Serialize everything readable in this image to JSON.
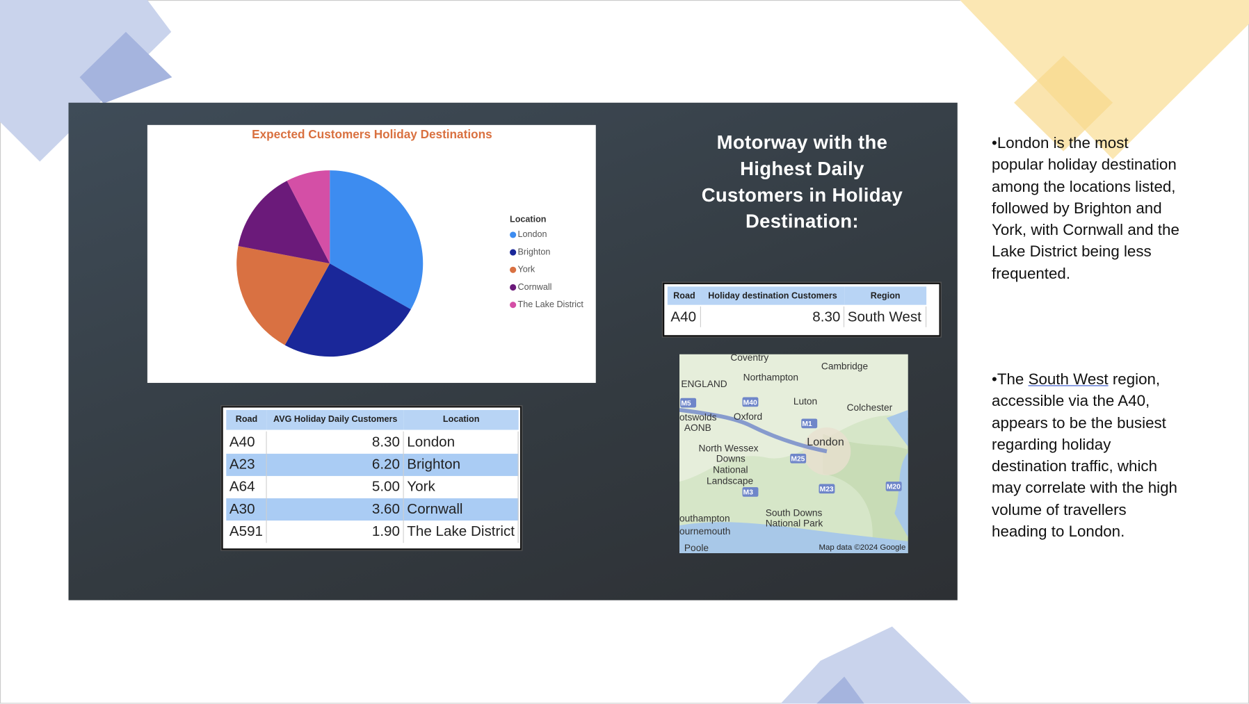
{
  "chart_data": {
    "type": "pie",
    "title": "Expected Customers Holiday Destinations",
    "legend_title": "Location",
    "categories": [
      "London",
      "Brighton",
      "York",
      "Cornwall",
      "The Lake District"
    ],
    "values": [
      8.3,
      6.2,
      5.0,
      3.6,
      1.9
    ],
    "colors": [
      "#3d8cf0",
      "#1a2799",
      "#d97142",
      "#6b1a7a",
      "#d44fa6"
    ],
    "legend": "right"
  },
  "heading": [
    "Motorway with the",
    "Highest Daily",
    "Customers in Holiday",
    "Destination:"
  ],
  "table_top": {
    "columns": [
      "Road",
      "Holiday destination Customers",
      "Region"
    ],
    "rows": [
      [
        "A40",
        "8.30",
        "South West"
      ]
    ]
  },
  "table_main": {
    "columns": [
      "Road",
      "AVG Holiday Daily Customers",
      "Location"
    ],
    "rows": [
      [
        "A40",
        "8.30",
        "London"
      ],
      [
        "A23",
        "6.20",
        "Brighton"
      ],
      [
        "A64",
        "5.00",
        "York"
      ],
      [
        "A30",
        "3.60",
        "Cornwall"
      ],
      [
        "A591",
        "1.90",
        "The Lake District"
      ]
    ]
  },
  "map": {
    "labels": [
      "Coventry",
      "Northampton",
      "Cambridge",
      "ENGLAND",
      "M40",
      "Luton",
      "Colchester",
      "otswolds",
      "AONB",
      "Oxford",
      "M1",
      "London",
      "North Wessex",
      "Downs",
      "National",
      "Landscape",
      "M25",
      "M3",
      "M23",
      "M20",
      "South Downs",
      "National Park",
      "outhampton",
      "ournemouth",
      "Poole",
      "M5"
    ],
    "credit": "Map data ©2024 Google"
  },
  "notes": [
    {
      "text": "•London is the most popular holiday destination among the locations listed, followed by Brighton and York, with Cornwall and the Lake District being less frequented."
    },
    {
      "before": "•The ",
      "link": "South West",
      "after": " region, accessible via the A40, appears to be the busiest regarding holiday destination traffic, which may correlate with the high volume of travellers heading to London."
    }
  ]
}
